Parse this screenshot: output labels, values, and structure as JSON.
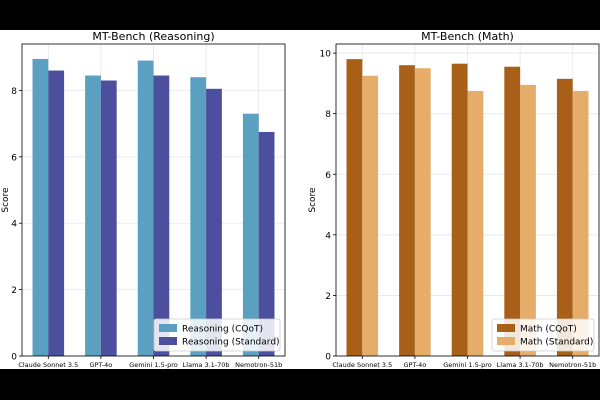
{
  "chart_data": [
    {
      "type": "bar",
      "title": "MT-Bench (Reasoning)",
      "ylabel": "Score",
      "xlabel": "",
      "ylim": [
        0,
        9.4
      ],
      "yticks": [
        0,
        2,
        4,
        6,
        8
      ],
      "grid": true,
      "legend_position": "lower-right",
      "categories": [
        "Claude Sonnet 3.5",
        "GPT-4o",
        "Gemini 1.5-pro",
        "Llama 3.1-70b",
        "Nemotron-51b"
      ],
      "series": [
        {
          "name": "Reasoning (CQoT)",
          "color": "#5b9fc1",
          "values": [
            8.95,
            8.45,
            8.9,
            8.4,
            7.3
          ]
        },
        {
          "name": "Reasoning (Standard)",
          "color": "#4b4f9e",
          "values": [
            8.6,
            8.3,
            8.45,
            8.05,
            6.75
          ]
        }
      ]
    },
    {
      "type": "bar",
      "title": "MT-Bench (Math)",
      "ylabel": "Score",
      "xlabel": "",
      "ylim": [
        0,
        10.3
      ],
      "yticks": [
        0,
        2,
        4,
        6,
        8,
        10
      ],
      "grid": true,
      "legend_position": "lower-right",
      "categories": [
        "Claude Sonnet 3.5",
        "GPT-4o",
        "Gemini 1.5-pro",
        "Llama 3.1-70b",
        "Nemotron-51b"
      ],
      "series": [
        {
          "name": "Math (CQoT)",
          "color": "#a85f17",
          "values": [
            9.8,
            9.6,
            9.65,
            9.55,
            9.15
          ]
        },
        {
          "name": "Math (Standard)",
          "color": "#e6ad6a",
          "values": [
            9.25,
            9.5,
            8.75,
            8.95,
            8.75
          ]
        }
      ]
    }
  ]
}
